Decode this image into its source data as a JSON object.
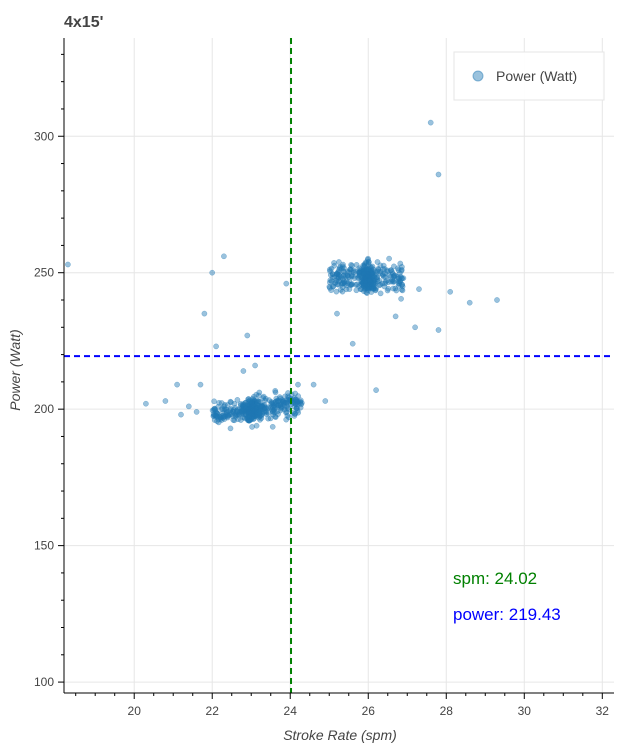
{
  "chart_data": {
    "type": "scatter",
    "title": "4x15'",
    "xlabel": "Stroke Rate (spm)",
    "ylabel": "Power (Watt)",
    "xlim": [
      18.2,
      32.3
    ],
    "ylim": [
      96,
      336
    ],
    "x_ticks": [
      20,
      22,
      24,
      26,
      28,
      30,
      32
    ],
    "y_ticks": [
      100,
      150,
      200,
      250,
      300
    ],
    "grid": true,
    "legend": {
      "position": "top-right",
      "entries": [
        "Power (Watt)"
      ]
    },
    "series": [
      {
        "name": "Power (Watt)",
        "color": "#1f77b4",
        "points": [
          [
            18.3,
            253
          ],
          [
            20.3,
            202
          ],
          [
            20.8,
            203
          ],
          [
            21.1,
            209
          ],
          [
            21.2,
            198
          ],
          [
            21.4,
            201
          ],
          [
            21.6,
            199
          ],
          [
            21.7,
            209
          ],
          [
            21.8,
            235
          ],
          [
            22.0,
            250
          ],
          [
            22.1,
            223
          ],
          [
            22.3,
            256
          ],
          [
            22.8,
            214
          ],
          [
            22.9,
            227
          ],
          [
            23.1,
            216
          ],
          [
            23.9,
            246
          ],
          [
            24.2,
            209
          ],
          [
            24.6,
            209
          ],
          [
            24.9,
            203
          ],
          [
            25.2,
            235
          ],
          [
            25.6,
            224
          ],
          [
            26.2,
            207
          ],
          [
            26.7,
            234
          ],
          [
            26.9,
            248
          ],
          [
            27.2,
            230
          ],
          [
            27.3,
            244
          ],
          [
            27.6,
            305
          ],
          [
            27.8,
            229
          ],
          [
            27.8,
            286
          ],
          [
            28.1,
            243
          ],
          [
            28.6,
            239
          ],
          [
            29.3,
            240
          ]
        ]
      }
    ],
    "annotations": [
      {
        "label": "spm:",
        "value": "24.02",
        "axis": "x",
        "color": "#008000"
      },
      {
        "label": "power:",
        "value": "219.43",
        "axis": "y",
        "color": "#0000ff"
      }
    ]
  }
}
